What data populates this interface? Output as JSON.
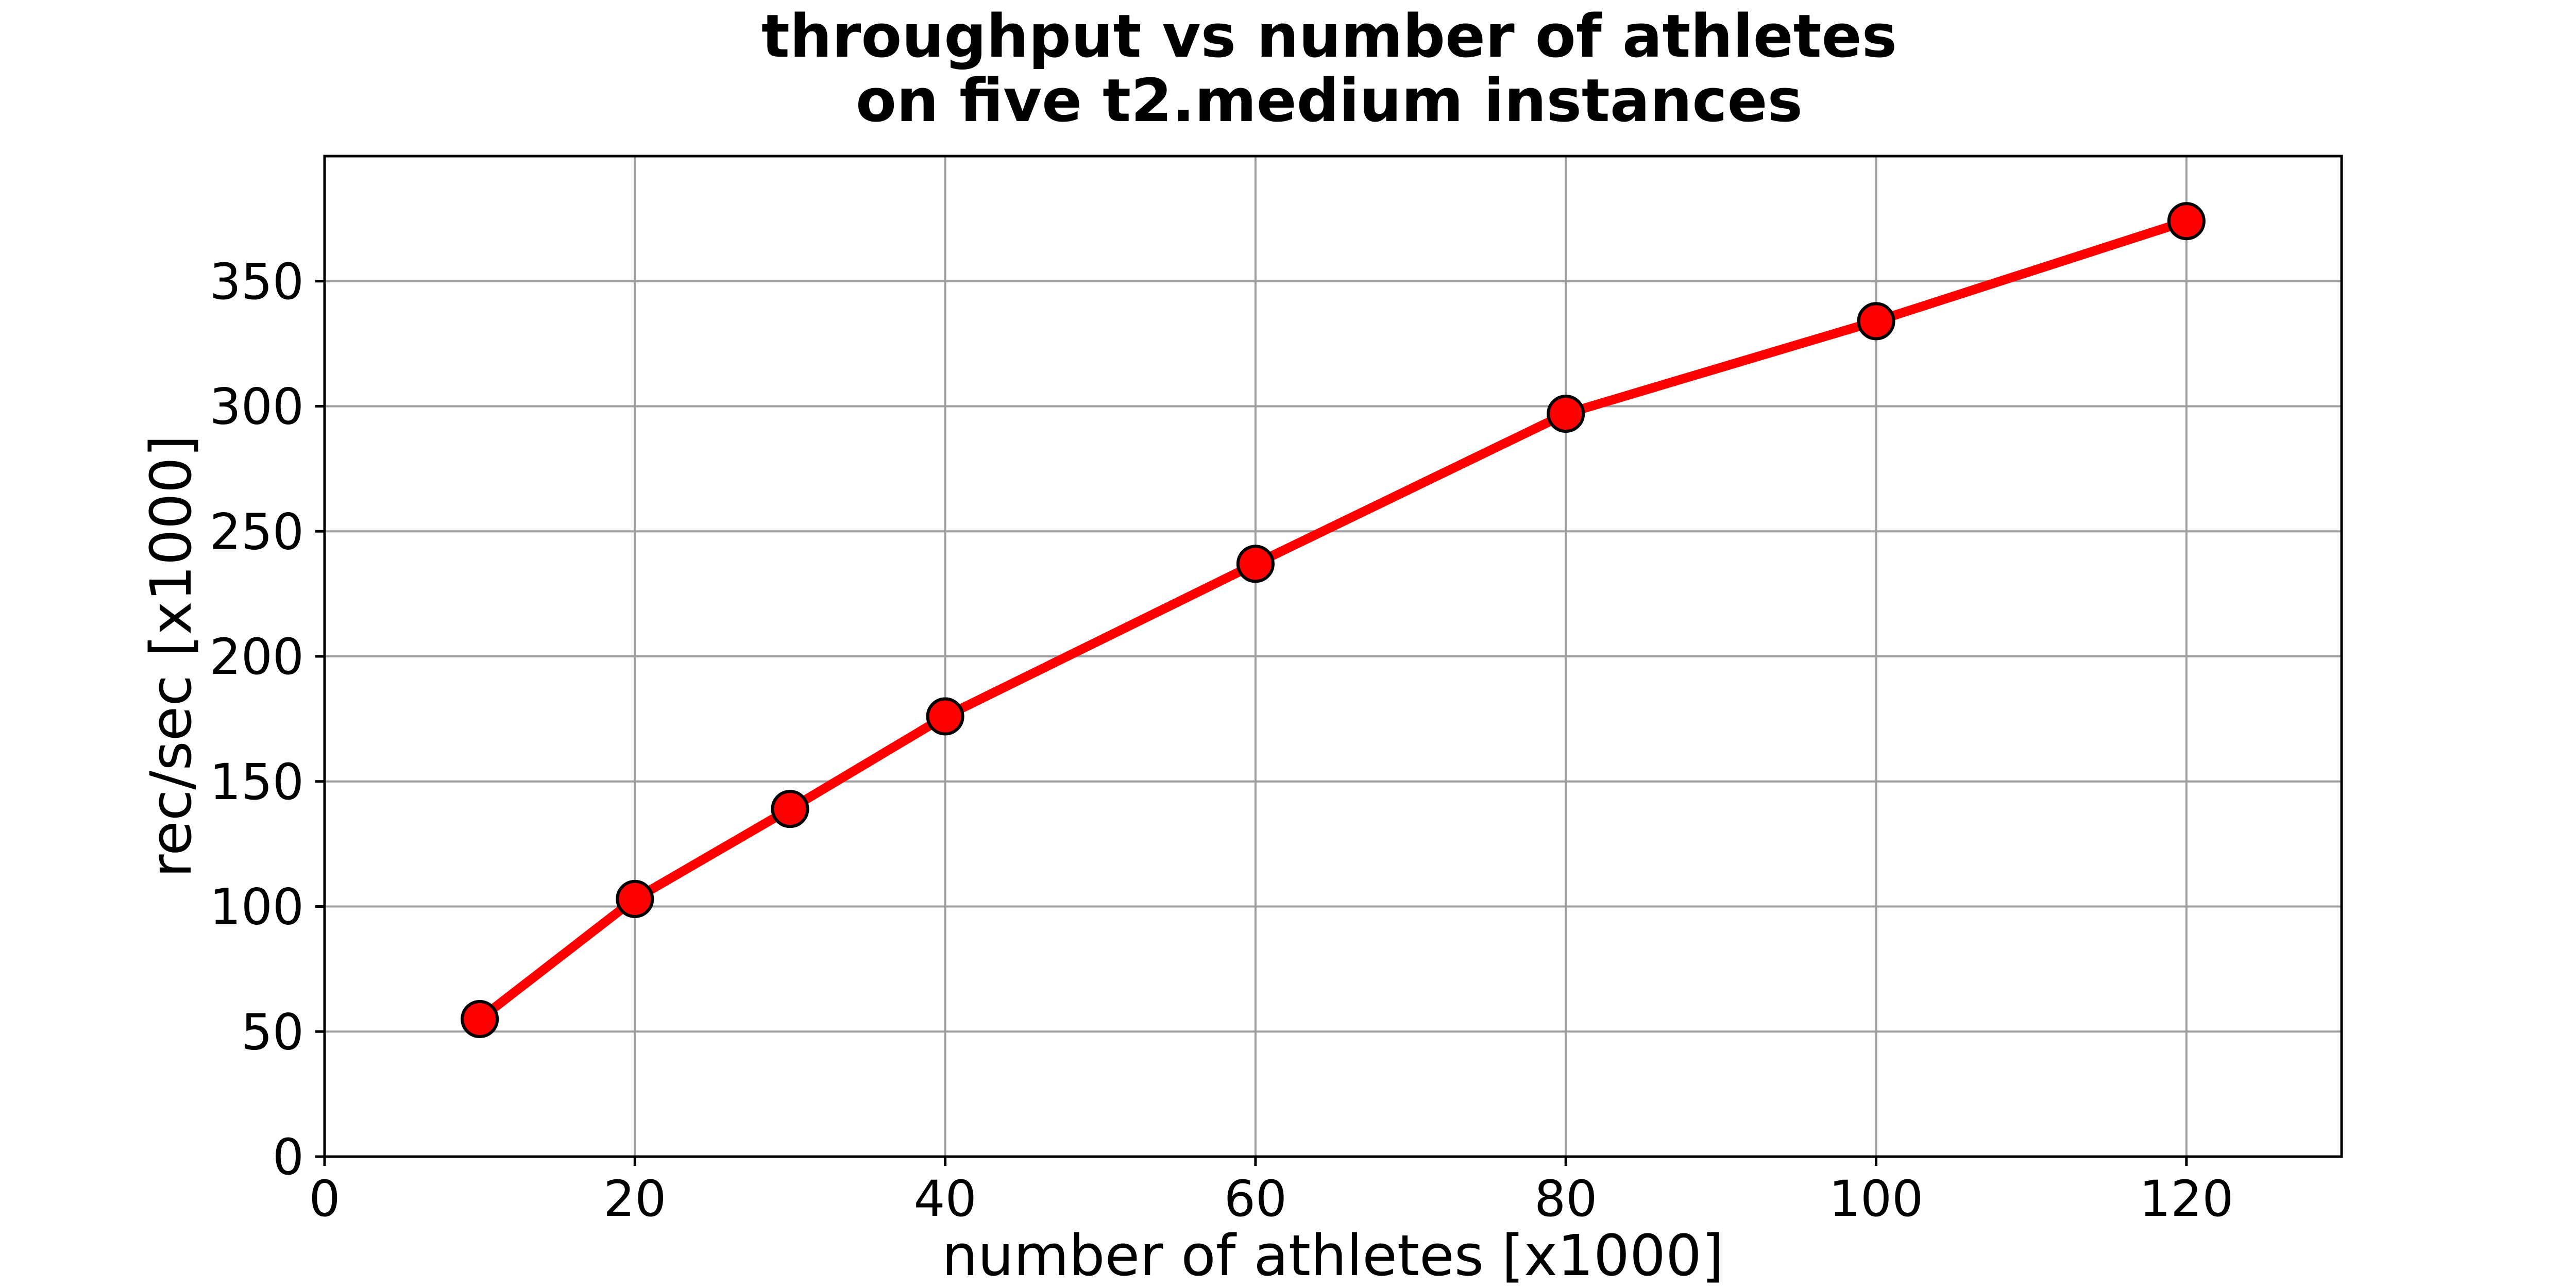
{
  "chart_data": {
    "type": "line",
    "title": [
      "throughput vs number of athletes",
      "on five t2.medium instances"
    ],
    "xlabel": "number of athletes [x1000]",
    "ylabel": "rec/sec [x1000]",
    "xlim": [
      0,
      130
    ],
    "ylim": [
      0,
      400
    ],
    "xticks": [
      0,
      20,
      40,
      60,
      80,
      100,
      120
    ],
    "yticks": [
      0,
      50,
      100,
      150,
      200,
      250,
      300,
      350
    ],
    "grid": true,
    "series": [
      {
        "x": [
          10,
          20,
          30,
          40,
          60,
          80,
          100,
          120
        ],
        "y": [
          55,
          103,
          139,
          176,
          237,
          297,
          334,
          374
        ],
        "line_color": "#ff0000",
        "marker_fill": "#ff0000",
        "marker_edge": "#000000"
      }
    ]
  }
}
